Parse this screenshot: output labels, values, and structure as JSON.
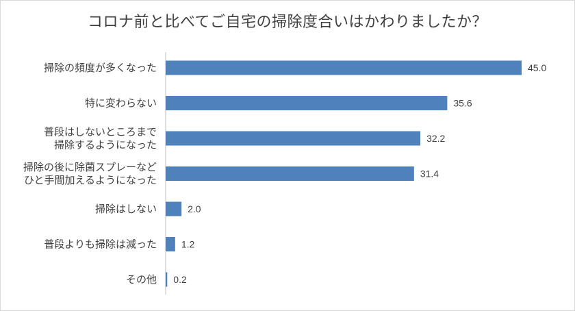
{
  "chart_data": {
    "type": "bar",
    "orientation": "horizontal",
    "title": "コロナ前と比べてご自宅の掃除度合いはかわりましたか？",
    "categories": [
      [
        "掃除の頻度が多くなった"
      ],
      [
        "特に変わらない"
      ],
      [
        "普段はしないところまで",
        "掃除するようになった"
      ],
      [
        "掃除の後に除菌スプレーなど",
        "ひと手間加えるようになった"
      ],
      [
        "掃除はしない"
      ],
      [
        "普段よりも掃除は減った"
      ],
      [
        "その他"
      ]
    ],
    "values": [
      45.0,
      35.6,
      32.2,
      31.4,
      2.0,
      1.2,
      0.2
    ],
    "value_labels": [
      "45.0",
      "35.6",
      "32.2",
      "31.4",
      "2.0",
      "1.2",
      "0.2"
    ],
    "xlim": [
      0,
      45.0
    ],
    "bar_color": "#4f81bd",
    "grid": false,
    "legend": "none"
  }
}
